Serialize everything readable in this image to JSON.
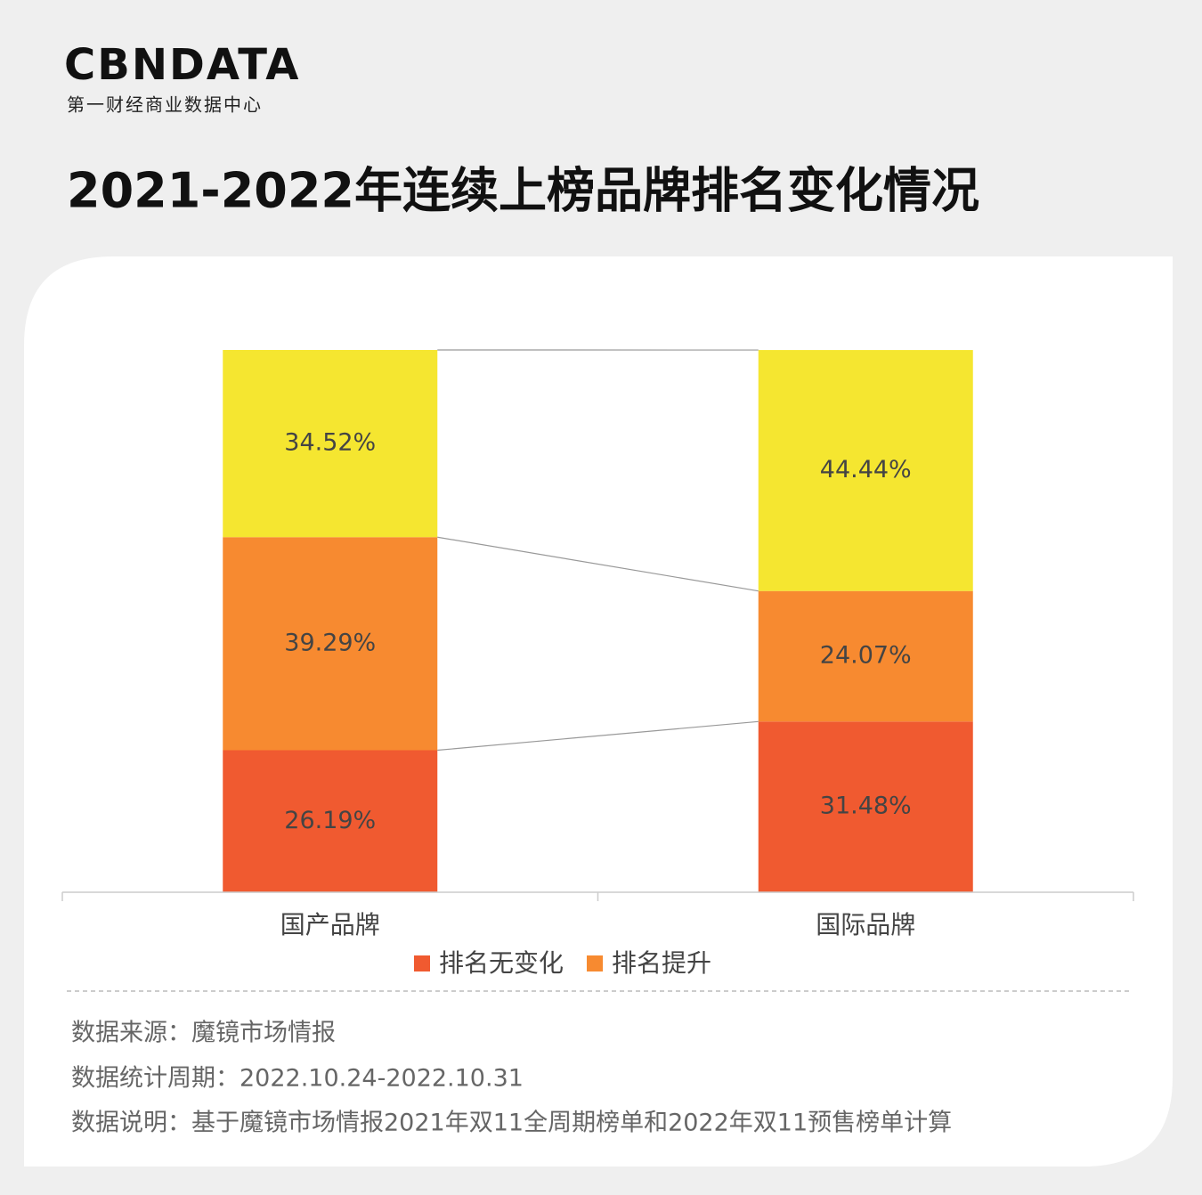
{
  "header": {
    "logo": "CBNDATA",
    "logo_subtitle": "第一财经商业数据中心"
  },
  "chart_data": {
    "type": "stacked_bar",
    "title": "2021-2022年连续上榜品牌排名变化情况",
    "categories": [
      "国产品牌",
      "国际品牌"
    ],
    "series": [
      {
        "name": "排名无变化",
        "color": "#f05a30",
        "values": [
          26.19,
          31.48
        ],
        "value_labels": [
          "26.19%",
          "31.48%"
        ]
      },
      {
        "name": "排名提升",
        "color": "#f78a30",
        "values": [
          39.29,
          24.07
        ],
        "value_labels": [
          "39.29%",
          "24.07%"
        ]
      },
      {
        "color": "#f5e630",
        "values": [
          34.52,
          44.44
        ],
        "value_labels": [
          "34.52%",
          "44.44%"
        ]
      }
    ],
    "ylim": [
      0,
      100
    ]
  },
  "footer": {
    "notes": [
      "数据来源：魔镜市场情报",
      "数据统计周期：2022.10.24-2022.10.31",
      "数据说明：基于魔镜市场情报2021年双11全周期榜单和2022年双11预售榜单计算"
    ]
  }
}
